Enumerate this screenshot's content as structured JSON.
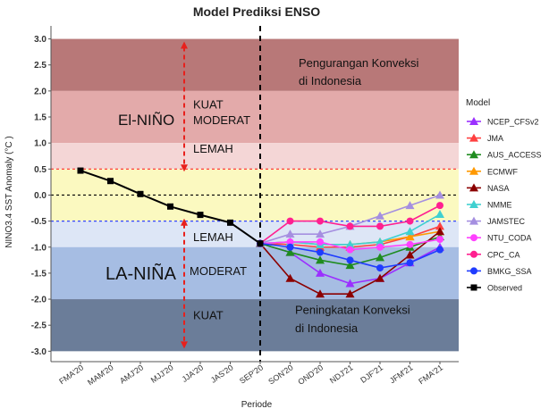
{
  "chart_data": {
    "type": "line",
    "title": "Model Prediksi ENSO",
    "xlabel": "Periode",
    "ylabel": "NINO3.4 SST Anomaly (°C )",
    "ylim": [
      -3.2,
      3.25
    ],
    "yticks": [
      "3.0",
      "2.5",
      "2.0",
      "1.5",
      "1.0",
      "0.5",
      "0.0",
      "-0.5",
      "-1.0",
      "-1.5",
      "-2.0",
      "-2.5",
      "-3.0"
    ],
    "categories": [
      "FMA'20",
      "MAM'20",
      "AMJ'20",
      "MJJ'20",
      "JJA'20",
      "JAS'20",
      "SEP'20",
      "SON'20",
      "OND'20",
      "NDJ'21",
      "DJF'21",
      "JFM'21",
      "FMA'21"
    ],
    "forecast_start": "SEP'20",
    "bands": [
      {
        "from": 2.0,
        "to": 3.0,
        "color": "#b87878"
      },
      {
        "from": 1.0,
        "to": 2.0,
        "color": "#e3aaaa"
      },
      {
        "from": 0.5,
        "to": 1.0,
        "color": "#f4d6d6"
      },
      {
        "from": -0.5,
        "to": 0.5,
        "color": "#fbf9c0"
      },
      {
        "from": -1.0,
        "to": -0.5,
        "color": "#dde6f6"
      },
      {
        "from": -2.0,
        "to": -1.0,
        "color": "#a6bde3"
      },
      {
        "from": -3.0,
        "to": -2.0,
        "color": "#6b7d99"
      }
    ],
    "thresholds": [
      {
        "value": 0.5,
        "color": "#ff2a2a"
      },
      {
        "value": 0.0,
        "color": "#000000"
      },
      {
        "value": -0.5,
        "color": "#3344ff"
      }
    ],
    "annotations": {
      "el_nino": "El-NIÑO",
      "la_nina": "LA-NIÑA",
      "upper_note_line1": "Pengurangan Konveksi",
      "upper_note_line2": "di Indonesia",
      "lower_note_line1": "Peningkatan Konveksi",
      "lower_note_line2": "di Indonesia",
      "el_kuat": "KUAT",
      "el_moderat": "MODERAT",
      "el_lemah": "LEMAH",
      "la_lemah": "LEMAH",
      "la_moderat": "MODERAT",
      "la_kuat": "KUAT"
    },
    "legend_title": "Model",
    "legend_position": "right",
    "series": [
      {
        "name": "Observed",
        "color": "#000000",
        "marker": "square",
        "values": [
          0.47,
          0.27,
          0.02,
          -0.22,
          -0.38,
          -0.53,
          -0.93,
          null,
          null,
          null,
          null,
          null,
          null
        ]
      },
      {
        "name": "NCEP_CFSv2",
        "color": "#9b30ff",
        "marker": "triangle",
        "values": [
          null,
          null,
          null,
          null,
          null,
          null,
          -0.93,
          -1.1,
          -1.5,
          -1.7,
          -1.6,
          -1.3,
          -1.0
        ]
      },
      {
        "name": "JMA",
        "color": "#ff4040",
        "marker": "triangle",
        "values": [
          null,
          null,
          null,
          null,
          null,
          null,
          -0.93,
          -0.95,
          -1.0,
          -1.0,
          -0.95,
          -0.8,
          -0.6
        ]
      },
      {
        "name": "AUS_ACCESS",
        "color": "#1f8c1f",
        "marker": "triangle",
        "values": [
          null,
          null,
          null,
          null,
          null,
          null,
          -0.93,
          -1.1,
          -1.25,
          -1.35,
          -1.2,
          -1.0,
          -0.8
        ]
      },
      {
        "name": "ECMWF",
        "color": "#ff9900",
        "marker": "triangle",
        "values": [
          null,
          null,
          null,
          null,
          null,
          null,
          -0.93,
          -0.9,
          -0.95,
          -0.95,
          -0.9,
          -0.8,
          -0.7
        ]
      },
      {
        "name": "NASA",
        "color": "#8b0000",
        "marker": "triangle",
        "values": [
          null,
          null,
          null,
          null,
          null,
          null,
          -0.93,
          -1.6,
          -1.9,
          -1.9,
          -1.6,
          -1.15,
          -0.7
        ]
      },
      {
        "name": "NMME",
        "color": "#40d0d0",
        "marker": "triangle",
        "values": [
          null,
          null,
          null,
          null,
          null,
          null,
          -0.93,
          -0.9,
          -0.95,
          -0.95,
          -0.9,
          -0.7,
          -0.37
        ]
      },
      {
        "name": "JAMSTEC",
        "color": "#a58fe0",
        "marker": "triangle",
        "values": [
          null,
          null,
          null,
          null,
          null,
          null,
          -0.93,
          -0.75,
          -0.75,
          -0.6,
          -0.4,
          -0.2,
          0.0
        ]
      },
      {
        "name": "NTU_CODA",
        "color": "#ff40ff",
        "marker": "circle",
        "values": [
          null,
          null,
          null,
          null,
          null,
          null,
          -0.93,
          -0.9,
          -0.9,
          -1.05,
          -1.0,
          -0.95,
          -0.85
        ]
      },
      {
        "name": "CPC_CA",
        "color": "#ff2090",
        "marker": "circle",
        "values": [
          null,
          null,
          null,
          null,
          null,
          null,
          -0.93,
          -0.5,
          -0.5,
          -0.6,
          -0.6,
          -0.5,
          -0.2
        ]
      },
      {
        "name": "BMKG_SSA",
        "color": "#1f3cff",
        "marker": "circle",
        "values": [
          null,
          null,
          null,
          null,
          null,
          null,
          -0.93,
          -1.0,
          -1.1,
          -1.25,
          -1.4,
          -1.3,
          -1.05
        ]
      }
    ],
    "legend_order": [
      "NCEP_CFSv2",
      "JMA",
      "AUS_ACCESS",
      "ECMWF",
      "NASA",
      "NMME",
      "JAMSTEC",
      "NTU_CODA",
      "CPC_CA",
      "BMKG_SSA",
      "Observed"
    ]
  }
}
